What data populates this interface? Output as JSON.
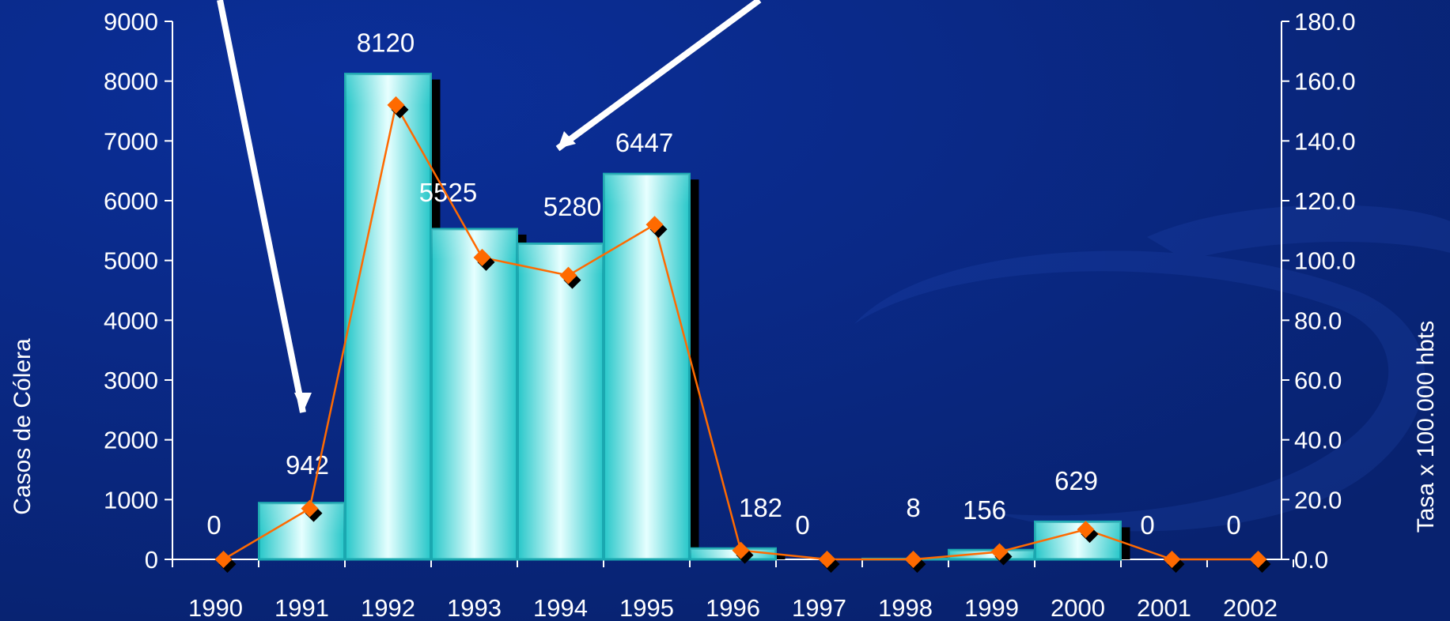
{
  "chart_data": {
    "type": "bar",
    "categories": [
      "1990",
      "1991",
      "1992",
      "1993",
      "1994",
      "1995",
      "1996",
      "1997",
      "1998",
      "1999",
      "2000",
      "2001",
      "2002"
    ],
    "series": [
      {
        "type": "bar",
        "axis": "left",
        "values": [
          0,
          942,
          8120,
          5525,
          5280,
          6447,
          182,
          0,
          8,
          156,
          629,
          0,
          0
        ],
        "labels": [
          "0",
          "942",
          "8120",
          "5525",
          "5280",
          "6447",
          "182",
          "0",
          "8",
          "156",
          "629",
          "0",
          "0"
        ]
      },
      {
        "type": "line",
        "axis": "right",
        "values": [
          0.0,
          17.0,
          152.0,
          101.0,
          95.0,
          112.0,
          3.0,
          0.0,
          0.0,
          2.5,
          10.0,
          0.0,
          0.0
        ]
      }
    ],
    "ylabel": "Casos de Cólera",
    "y2label": "Tasa x 100.000 hbts",
    "ylim": [
      0,
      9000
    ],
    "y2lim": [
      0,
      180
    ],
    "yticks": [
      "0",
      "1000",
      "2000",
      "3000",
      "4000",
      "5000",
      "6000",
      "7000",
      "8000",
      "9000"
    ],
    "y2ticks": [
      "0.0",
      "20.0",
      "40.0",
      "60.0",
      "80.0",
      "100.0",
      "120.0",
      "140.0",
      "160.0",
      "180.0"
    ],
    "grid": false,
    "legend": "none",
    "colors": {
      "background": "#0a2a8a",
      "bar_light": "#dffcfc",
      "bar_mid": "#3fd4d4",
      "bar_edge": "#1aa8b0",
      "shadow": "#000000",
      "line": "#ff6a00",
      "marker": "#ff6a00",
      "text": "#ffffff",
      "arrow": "#ffffff"
    }
  }
}
